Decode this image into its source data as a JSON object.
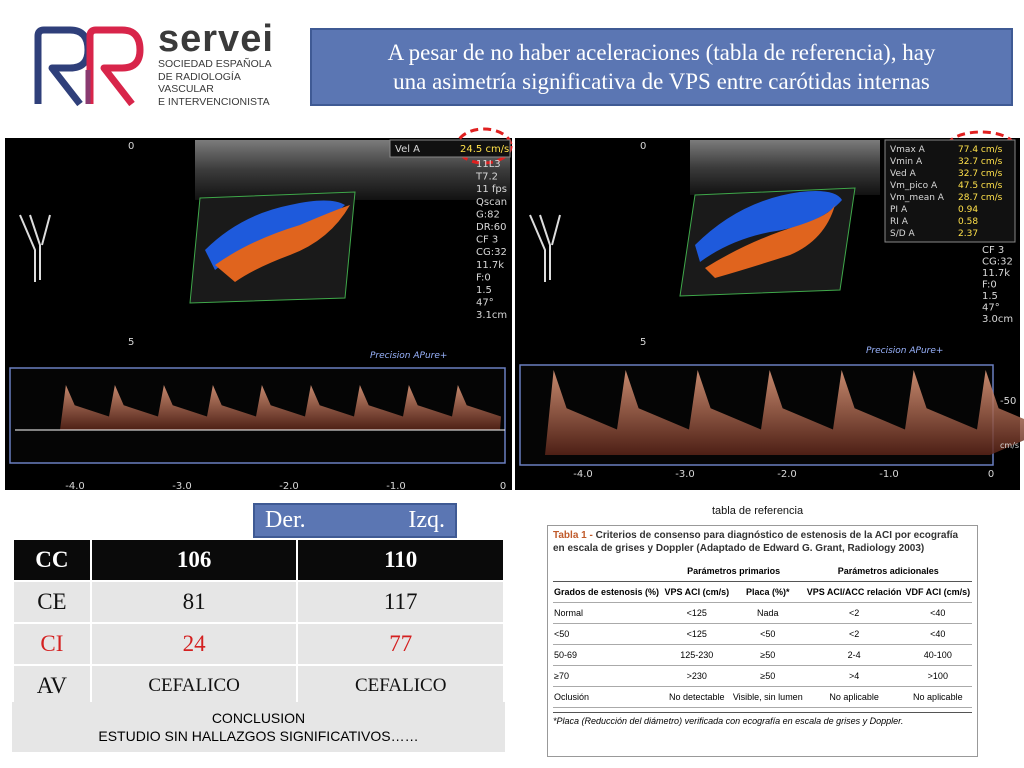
{
  "header": {
    "logo_word": "servei",
    "logo_lines": [
      "SOCIEDAD ESPAÑOLA",
      "DE RADIOLOGÍA",
      "VASCULAR",
      "E INTERVENCIONISTA"
    ],
    "title_lines": [
      "A pesar de no haber aceleraciones (tabla de referencia), hay",
      "una asimetría significativa de VPS entre carótidas internas"
    ]
  },
  "ultrasound": {
    "left": {
      "vel_label": "Vel A",
      "vel_value": "24.5 cm/s",
      "depth_marks": [
        "0",
        "5"
      ],
      "settings": [
        "11L3",
        "T7.2",
        "11 fps",
        "Qscan",
        "G:82",
        "DR:60",
        "CF 3",
        "CG:32",
        "11.7k",
        "F:0",
        "1.5",
        "47°",
        "3.1cm"
      ],
      "brand": "Precision APure+",
      "time_axis": [
        "-4.0",
        "-3.0",
        "-2.0",
        "-1.0",
        "0"
      ]
    },
    "right": {
      "depth_marks": [
        "0",
        "5"
      ],
      "measurements": [
        [
          "Vmax A",
          "77.4 cm/s"
        ],
        [
          "Vmin A",
          "32.7 cm/s"
        ],
        [
          "Ved A",
          "32.7 cm/s"
        ],
        [
          "Vm_pico A",
          "47.5 cm/s"
        ],
        [
          "Vm_mean A",
          "28.7 cm/s"
        ],
        [
          "PI A",
          "0.94"
        ],
        [
          "RI A",
          "0.58"
        ],
        [
          "S/D A",
          "2.37"
        ]
      ],
      "settings": [
        "CF 3",
        "CG:32",
        "11.7k",
        "F:0",
        "1.5",
        "47°",
        "3.0cm"
      ],
      "brand": "Precision APure+",
      "scale_labels": [
        "-50",
        "cm/s"
      ],
      "time_axis": [
        "-4.0",
        "-3.0",
        "-2.0",
        "-1.0",
        "0"
      ]
    }
  },
  "comparison": {
    "columns": [
      "Der.",
      "Izq."
    ],
    "rows": [
      [
        "CC",
        "106",
        "110"
      ],
      [
        "CE",
        "81",
        "117"
      ],
      [
        "CI",
        "24",
        "77"
      ],
      [
        "AV",
        "CEFALICO",
        "CEFALICO"
      ]
    ],
    "conclusion": [
      "CONCLUSION",
      "ESTUDIO SIN HALLAZGOS SIGNIFICATIVOS……"
    ]
  },
  "reference": {
    "caption": "tabla de referencia",
    "title_lead": "Tabla 1 - ",
    "title": "Criterios de consenso para diagnóstico de estenosis de la ACI por ecografía en escala de grises y Doppler (Adaptado de Edward G. Grant, Radiology 2003)",
    "groups": [
      "Parámetros primarios",
      "Parámetros adicionales"
    ],
    "columns": [
      "Grados de estenosis (%)",
      "VPS ACI (cm/s)",
      "Placa (%)*",
      "VPS ACI/ACC relación",
      "VDF ACI (cm/s)"
    ],
    "rows": [
      [
        "Normal",
        "<125",
        "Nada",
        "<2",
        "<40"
      ],
      [
        "<50",
        "<125",
        "<50",
        "<2",
        "<40"
      ],
      [
        "50-69",
        "125-230",
        "≥50",
        "2-4",
        "40-100"
      ],
      [
        "≥70",
        ">230",
        "≥50",
        ">4",
        ">100"
      ],
      [
        "Oclusión",
        "No detectable",
        "Visible, sin lumen",
        "No aplicable",
        "No aplicable"
      ]
    ],
    "footnote": "*Placa (Reducción del diámetro) verificada con ecografía en escala de grises y Doppler."
  }
}
